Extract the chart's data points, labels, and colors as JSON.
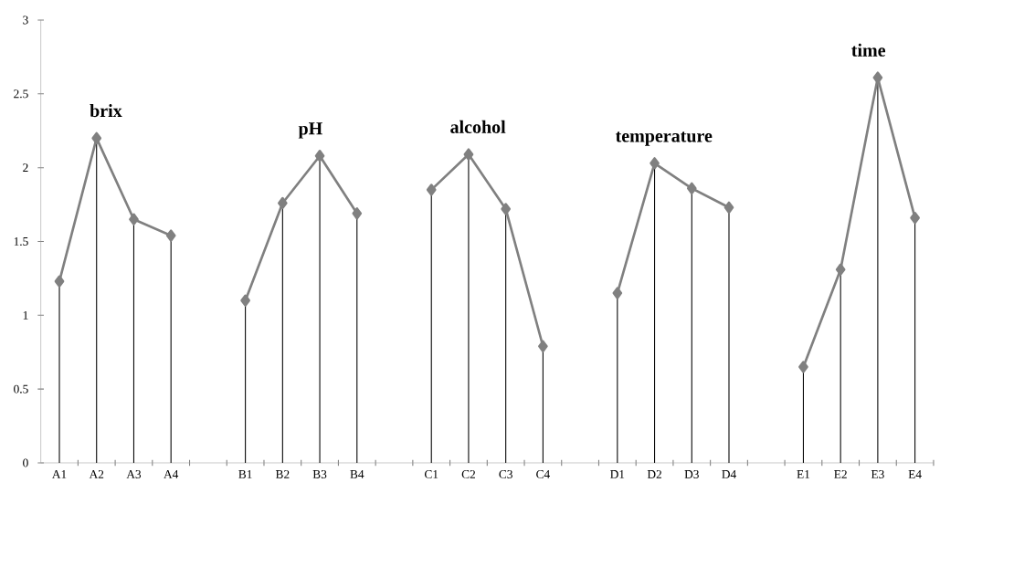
{
  "chart_data": {
    "type": "line",
    "categories": [
      "A1",
      "A2",
      "A3",
      "A4",
      null,
      "B1",
      "B2",
      "B3",
      "B4",
      null,
      "C1",
      "C2",
      "C3",
      "C4",
      null,
      "D1",
      "D2",
      "D3",
      "D4",
      null,
      "E1",
      "E2",
      "E3",
      "E4"
    ],
    "series": [
      {
        "type": "lollipop",
        "color": "#808080",
        "values": [
          1.23,
          2.2,
          1.65,
          1.54,
          null,
          1.1,
          1.76,
          2.08,
          1.69,
          null,
          1.85,
          2.09,
          1.72,
          0.79,
          null,
          1.15,
          2.03,
          1.86,
          1.73,
          null,
          0.65,
          1.31,
          2.61,
          1.66
        ]
      },
      {
        "name": "brix",
        "color": "#808080",
        "values": [
          1.23,
          2.2,
          1.65,
          1.54,
          null,
          null,
          null,
          null,
          null,
          null,
          null,
          null,
          null,
          null,
          null,
          null,
          null,
          null,
          null,
          null,
          null,
          null,
          null,
          null
        ]
      },
      {
        "name": "pH",
        "color": "#808080",
        "values": [
          null,
          null,
          null,
          null,
          null,
          1.1,
          1.76,
          2.08,
          1.69,
          null,
          null,
          null,
          null,
          null,
          null,
          null,
          null,
          null,
          null,
          null,
          null,
          null,
          null,
          null
        ]
      },
      {
        "name": "alcohol",
        "color": "#808080",
        "values": [
          null,
          null,
          null,
          null,
          null,
          null,
          null,
          null,
          null,
          null,
          1.85,
          2.09,
          1.72,
          0.79,
          null,
          null,
          null,
          null,
          null,
          null,
          null,
          null,
          null,
          null
        ]
      },
      {
        "name": "temperature",
        "color": "#808080",
        "values": [
          null,
          null,
          null,
          null,
          null,
          null,
          null,
          null,
          null,
          null,
          null,
          null,
          null,
          null,
          null,
          1.15,
          2.03,
          1.86,
          1.73,
          null,
          null,
          null,
          null,
          null
        ]
      },
      {
        "name": "time",
        "color": "#808080",
        "values": [
          null,
          null,
          null,
          null,
          null,
          null,
          null,
          null,
          null,
          null,
          null,
          null,
          null,
          null,
          null,
          null,
          null,
          null,
          null,
          null,
          0.65,
          1.31,
          2.61,
          1.66
        ]
      }
    ],
    "ylim": [
      0,
      3
    ],
    "yticks": [
      0,
      0.5,
      1,
      1.5,
      2,
      2.5,
      3
    ],
    "marker": "diamond"
  }
}
